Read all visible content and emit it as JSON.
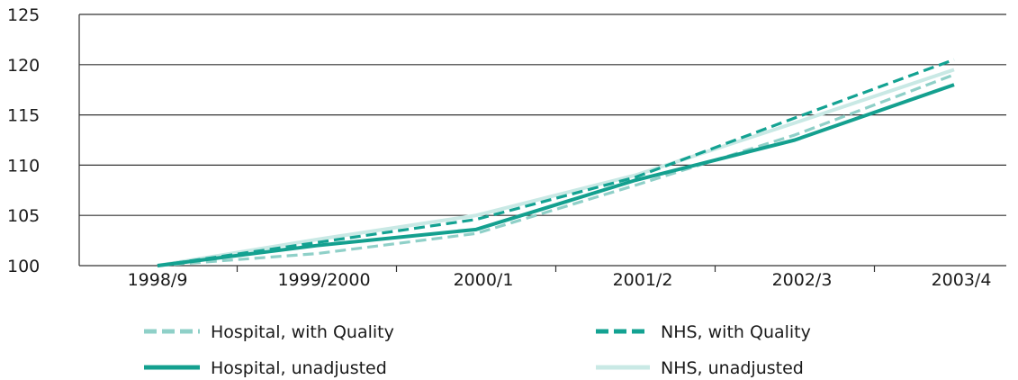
{
  "chart_data": {
    "type": "line",
    "title": "",
    "xlabel": "",
    "ylabel": "",
    "categories": [
      "1998/9",
      "1999/2000",
      "2000/1",
      "2001/2",
      "2002/3",
      "2003/4"
    ],
    "ylim": [
      100,
      125
    ],
    "yticks": [
      100,
      105,
      110,
      115,
      120,
      125
    ],
    "grid": true,
    "legend_position": "bottom",
    "series": [
      {
        "name": "Hospital, with Quality",
        "values": [
          100.0,
          101.2,
          103.2,
          108.0,
          113.0,
          119.0
        ],
        "color": "#8fd0c8",
        "style": "dashed",
        "key": "hq"
      },
      {
        "name": "NHS, with Quality",
        "values": [
          100.0,
          102.3,
          104.6,
          108.8,
          114.7,
          120.5
        ],
        "color": "#13a292",
        "style": "dashed",
        "key": "nq"
      },
      {
        "name": "Hospital, unadjusted",
        "values": [
          100.0,
          102.0,
          103.6,
          108.5,
          112.5,
          118.0
        ],
        "color": "#14a08f",
        "style": "solid",
        "key": "hu"
      },
      {
        "name": "NHS, unadjusted",
        "values": [
          100.0,
          102.6,
          105.0,
          109.0,
          114.2,
          119.5
        ],
        "color": "#c9e9e5",
        "style": "solid",
        "key": "nu"
      }
    ]
  }
}
